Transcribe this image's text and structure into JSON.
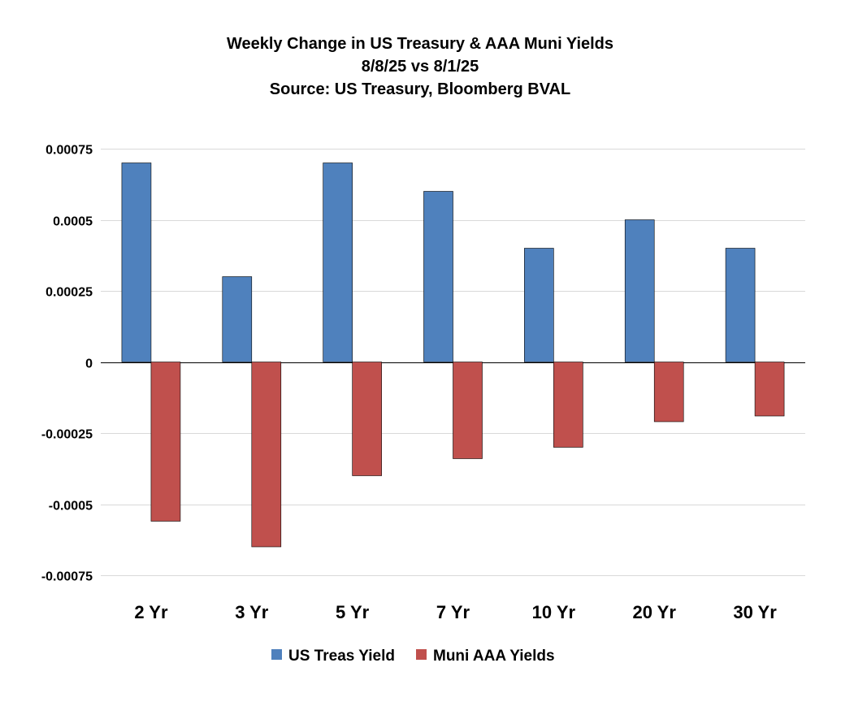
{
  "chart_data": {
    "type": "bar",
    "title": [
      "Weekly Change in US Treasury & AAA Muni Yields",
      "8/8/25 vs 8/1/25",
      "Source: US Treasury, Bloomberg BVAL"
    ],
    "categories": [
      "2 Yr",
      "3 Yr",
      "5 Yr",
      "7 Yr",
      "10 Yr",
      "20 Yr",
      "30 Yr"
    ],
    "series": [
      {
        "name": "US Treas Yield",
        "color": "#4f81bd",
        "values": [
          0.0007,
          0.0003,
          0.0007,
          0.0006,
          0.0004,
          0.0005,
          0.0004
        ]
      },
      {
        "name": "Muni AAA Yields",
        "color": "#c0504d",
        "values": [
          -0.00056,
          -0.00065,
          -0.0004,
          -0.00034,
          -0.0003,
          -0.00021,
          -0.00019
        ]
      }
    ],
    "ylim": [
      -0.00075,
      0.00075
    ],
    "yticks": [
      0.00075,
      0.0005,
      0.00025,
      0,
      -0.00025,
      -0.0005,
      -0.00075
    ],
    "ytick_labels": [
      "0.00075",
      "0.0005",
      "0.00025",
      "0",
      "-0.00025",
      "-0.0005",
      "-0.00075"
    ],
    "xlabel": "",
    "ylabel": "",
    "grid": true,
    "legend_position": "bottom-center"
  }
}
